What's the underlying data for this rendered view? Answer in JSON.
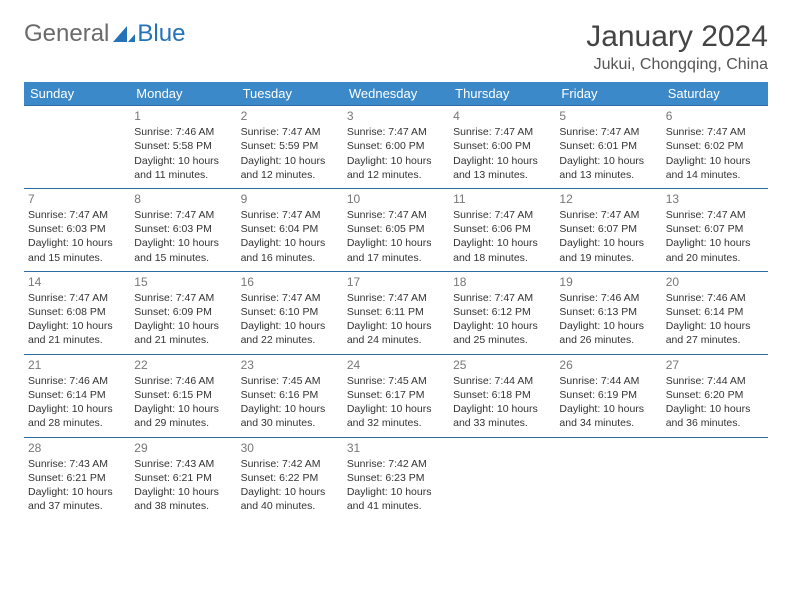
{
  "logo": {
    "text1": "General",
    "text2": "Blue",
    "accent_color": "#2572b9"
  },
  "title": "January 2024",
  "location": "Jukui, Chongqing, China",
  "colors": {
    "header_bg": "#3b89c9",
    "header_text": "#ffffff",
    "row_border": "#2e6da4",
    "daynum": "#777777",
    "body_text": "#333333",
    "background": "#ffffff"
  },
  "weekdays": [
    "Sunday",
    "Monday",
    "Tuesday",
    "Wednesday",
    "Thursday",
    "Friday",
    "Saturday"
  ],
  "weeks": [
    [
      null,
      {
        "n": "1",
        "sr": "Sunrise: 7:46 AM",
        "ss": "Sunset: 5:58 PM",
        "dl": "Daylight: 10 hours and 11 minutes."
      },
      {
        "n": "2",
        "sr": "Sunrise: 7:47 AM",
        "ss": "Sunset: 5:59 PM",
        "dl": "Daylight: 10 hours and 12 minutes."
      },
      {
        "n": "3",
        "sr": "Sunrise: 7:47 AM",
        "ss": "Sunset: 6:00 PM",
        "dl": "Daylight: 10 hours and 12 minutes."
      },
      {
        "n": "4",
        "sr": "Sunrise: 7:47 AM",
        "ss": "Sunset: 6:00 PM",
        "dl": "Daylight: 10 hours and 13 minutes."
      },
      {
        "n": "5",
        "sr": "Sunrise: 7:47 AM",
        "ss": "Sunset: 6:01 PM",
        "dl": "Daylight: 10 hours and 13 minutes."
      },
      {
        "n": "6",
        "sr": "Sunrise: 7:47 AM",
        "ss": "Sunset: 6:02 PM",
        "dl": "Daylight: 10 hours and 14 minutes."
      }
    ],
    [
      {
        "n": "7",
        "sr": "Sunrise: 7:47 AM",
        "ss": "Sunset: 6:03 PM",
        "dl": "Daylight: 10 hours and 15 minutes."
      },
      {
        "n": "8",
        "sr": "Sunrise: 7:47 AM",
        "ss": "Sunset: 6:03 PM",
        "dl": "Daylight: 10 hours and 15 minutes."
      },
      {
        "n": "9",
        "sr": "Sunrise: 7:47 AM",
        "ss": "Sunset: 6:04 PM",
        "dl": "Daylight: 10 hours and 16 minutes."
      },
      {
        "n": "10",
        "sr": "Sunrise: 7:47 AM",
        "ss": "Sunset: 6:05 PM",
        "dl": "Daylight: 10 hours and 17 minutes."
      },
      {
        "n": "11",
        "sr": "Sunrise: 7:47 AM",
        "ss": "Sunset: 6:06 PM",
        "dl": "Daylight: 10 hours and 18 minutes."
      },
      {
        "n": "12",
        "sr": "Sunrise: 7:47 AM",
        "ss": "Sunset: 6:07 PM",
        "dl": "Daylight: 10 hours and 19 minutes."
      },
      {
        "n": "13",
        "sr": "Sunrise: 7:47 AM",
        "ss": "Sunset: 6:07 PM",
        "dl": "Daylight: 10 hours and 20 minutes."
      }
    ],
    [
      {
        "n": "14",
        "sr": "Sunrise: 7:47 AM",
        "ss": "Sunset: 6:08 PM",
        "dl": "Daylight: 10 hours and 21 minutes."
      },
      {
        "n": "15",
        "sr": "Sunrise: 7:47 AM",
        "ss": "Sunset: 6:09 PM",
        "dl": "Daylight: 10 hours and 21 minutes."
      },
      {
        "n": "16",
        "sr": "Sunrise: 7:47 AM",
        "ss": "Sunset: 6:10 PM",
        "dl": "Daylight: 10 hours and 22 minutes."
      },
      {
        "n": "17",
        "sr": "Sunrise: 7:47 AM",
        "ss": "Sunset: 6:11 PM",
        "dl": "Daylight: 10 hours and 24 minutes."
      },
      {
        "n": "18",
        "sr": "Sunrise: 7:47 AM",
        "ss": "Sunset: 6:12 PM",
        "dl": "Daylight: 10 hours and 25 minutes."
      },
      {
        "n": "19",
        "sr": "Sunrise: 7:46 AM",
        "ss": "Sunset: 6:13 PM",
        "dl": "Daylight: 10 hours and 26 minutes."
      },
      {
        "n": "20",
        "sr": "Sunrise: 7:46 AM",
        "ss": "Sunset: 6:14 PM",
        "dl": "Daylight: 10 hours and 27 minutes."
      }
    ],
    [
      {
        "n": "21",
        "sr": "Sunrise: 7:46 AM",
        "ss": "Sunset: 6:14 PM",
        "dl": "Daylight: 10 hours and 28 minutes."
      },
      {
        "n": "22",
        "sr": "Sunrise: 7:46 AM",
        "ss": "Sunset: 6:15 PM",
        "dl": "Daylight: 10 hours and 29 minutes."
      },
      {
        "n": "23",
        "sr": "Sunrise: 7:45 AM",
        "ss": "Sunset: 6:16 PM",
        "dl": "Daylight: 10 hours and 30 minutes."
      },
      {
        "n": "24",
        "sr": "Sunrise: 7:45 AM",
        "ss": "Sunset: 6:17 PM",
        "dl": "Daylight: 10 hours and 32 minutes."
      },
      {
        "n": "25",
        "sr": "Sunrise: 7:44 AM",
        "ss": "Sunset: 6:18 PM",
        "dl": "Daylight: 10 hours and 33 minutes."
      },
      {
        "n": "26",
        "sr": "Sunrise: 7:44 AM",
        "ss": "Sunset: 6:19 PM",
        "dl": "Daylight: 10 hours and 34 minutes."
      },
      {
        "n": "27",
        "sr": "Sunrise: 7:44 AM",
        "ss": "Sunset: 6:20 PM",
        "dl": "Daylight: 10 hours and 36 minutes."
      }
    ],
    [
      {
        "n": "28",
        "sr": "Sunrise: 7:43 AM",
        "ss": "Sunset: 6:21 PM",
        "dl": "Daylight: 10 hours and 37 minutes."
      },
      {
        "n": "29",
        "sr": "Sunrise: 7:43 AM",
        "ss": "Sunset: 6:21 PM",
        "dl": "Daylight: 10 hours and 38 minutes."
      },
      {
        "n": "30",
        "sr": "Sunrise: 7:42 AM",
        "ss": "Sunset: 6:22 PM",
        "dl": "Daylight: 10 hours and 40 minutes."
      },
      {
        "n": "31",
        "sr": "Sunrise: 7:42 AM",
        "ss": "Sunset: 6:23 PM",
        "dl": "Daylight: 10 hours and 41 minutes."
      },
      null,
      null,
      null
    ]
  ]
}
